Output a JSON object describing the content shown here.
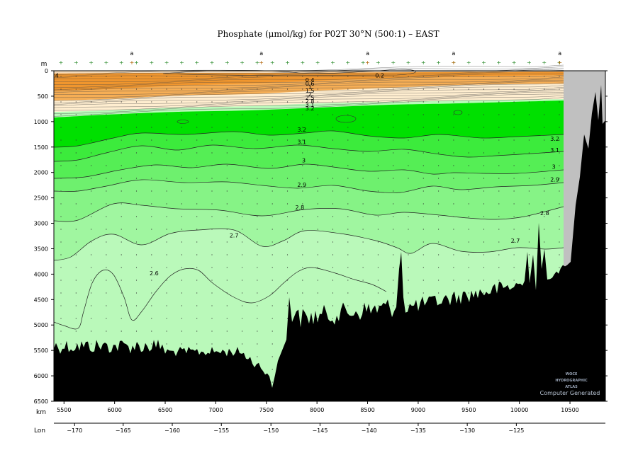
{
  "chart_data": {
    "type": "heatmap",
    "title": "Phosphate (μmol/kg) for P02T 30°N (500:1) – EAST",
    "y_unit_label": "m",
    "x_unit_label": "km",
    "lon_label": "Lon",
    "xlim": [
      5400,
      10850
    ],
    "ylim": [
      6500,
      0
    ],
    "x_ticks": [
      5500,
      6000,
      6500,
      7000,
      7500,
      8000,
      8500,
      9000,
      9500,
      10000,
      10500
    ],
    "y_ticks": [
      0,
      500,
      1000,
      1500,
      2000,
      2500,
      3000,
      3500,
      4000,
      4500,
      5000,
      5500,
      6000,
      6500
    ],
    "lon_ticks": [
      {
        "lon": "−170",
        "km": 5605
      },
      {
        "lon": "−165",
        "km": 6085
      },
      {
        "lon": "−160",
        "km": 6570
      },
      {
        "lon": "−155",
        "km": 7055
      },
      {
        "lon": "−150",
        "km": 7545
      },
      {
        "lon": "−145",
        "km": 8030
      },
      {
        "lon": "−140",
        "km": 8515
      },
      {
        "lon": "−135",
        "km": 9000
      },
      {
        "lon": "−130",
        "km": 9485
      },
      {
        "lon": "−125",
        "km": 9970
      }
    ],
    "station_markers": [
      {
        "km": 6170,
        "label": "a"
      },
      {
        "km": 7450,
        "label": "a"
      },
      {
        "km": 8500,
        "label": "a"
      },
      {
        "km": 9350,
        "label": "a"
      },
      {
        "km": 10400,
        "label": "a"
      }
    ],
    "contour_levels": [
      0.2,
      1,
      2,
      3.2,
      3.1,
      3,
      2.9,
      2.8,
      2.7,
      2.6
    ],
    "contour_labels": [
      {
        "text": "0.2",
        "km": 8620,
        "depth": 130
      },
      {
        "text": "4",
        "km": 5430,
        "depth": 130
      },
      {
        "text": "3.2",
        "km": 7850,
        "depth": 1200
      },
      {
        "text": "3.2",
        "km": 10350,
        "depth": 1380
      },
      {
        "text": "3.1",
        "km": 7850,
        "depth": 1440
      },
      {
        "text": "3.1",
        "km": 10350,
        "depth": 1600
      },
      {
        "text": "3",
        "km": 7870,
        "depth": 1800
      },
      {
        "text": "3",
        "km": 10340,
        "depth": 1930
      },
      {
        "text": "2.9",
        "km": 7850,
        "depth": 2280
      },
      {
        "text": "2.9",
        "km": 10350,
        "depth": 2180
      },
      {
        "text": "2.8",
        "km": 7830,
        "depth": 2730
      },
      {
        "text": "2.8",
        "km": 10250,
        "depth": 2840
      },
      {
        "text": "2.7",
        "km": 7180,
        "depth": 3280
      },
      {
        "text": "2.7",
        "km": 9960,
        "depth": 3380
      },
      {
        "text": "2.6",
        "km": 6390,
        "depth": 4020
      }
    ],
    "color_bands": [
      {
        "min": 0.0,
        "max": 0.5,
        "color": "#f0e7d6"
      },
      {
        "min": 0.5,
        "max": 1.5,
        "color": "#f5a23f"
      },
      {
        "min": 1.5,
        "max": 2.5,
        "color": "#ffcc88"
      },
      {
        "min": 2.5,
        "max": 3.2,
        "color": "#ffeed0"
      },
      {
        "min": 3.2,
        "max": 3.3,
        "color": "#00e000"
      },
      {
        "min": 3.1,
        "max": 3.2,
        "color": "#40ea40"
      },
      {
        "min": 3.0,
        "max": 3.1,
        "color": "#58ee58"
      },
      {
        "min": 2.9,
        "max": 3.0,
        "color": "#70f070"
      },
      {
        "min": 2.8,
        "max": 2.9,
        "color": "#8af48a"
      },
      {
        "min": 2.7,
        "max": 2.8,
        "color": "#a2f7a2"
      },
      {
        "min": 0.0,
        "max": 2.7,
        "color": "#baf9ba"
      }
    ],
    "grid": false,
    "bottom_topography_color": "#000000",
    "no_data_color": "#c0c0c0"
  },
  "watermark": {
    "line1": "WOCE",
    "line2": "HYDROGRAPHIC",
    "line3": "ATLAS",
    "caption": "Computer Generated"
  }
}
